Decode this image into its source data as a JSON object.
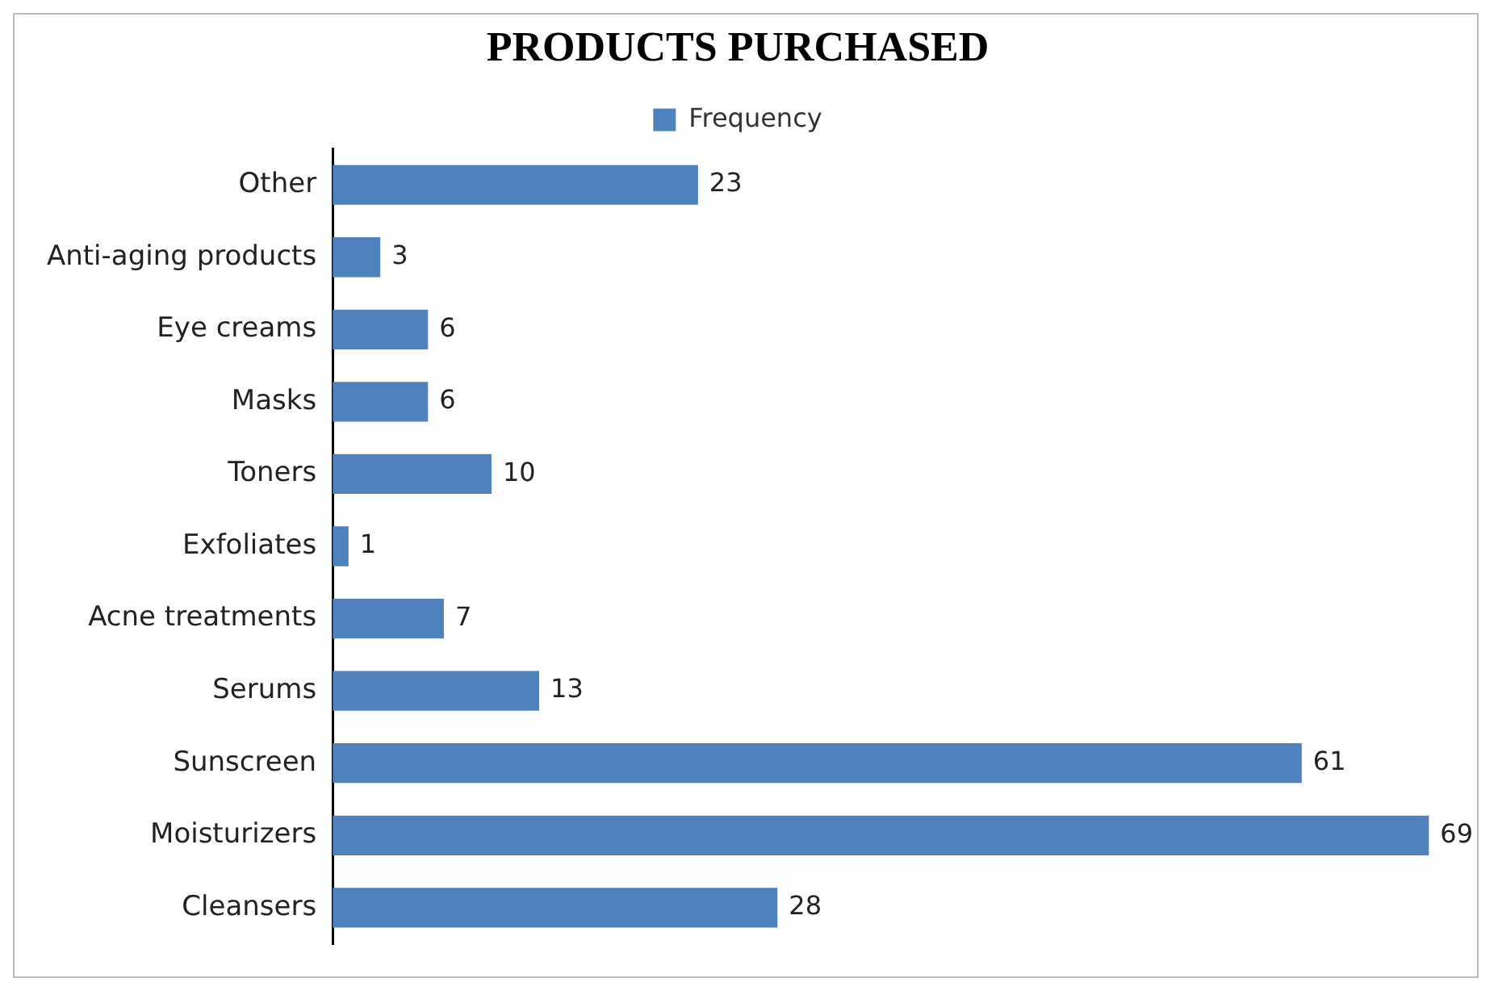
{
  "chart_data": {
    "type": "bar",
    "orientation": "horizontal",
    "title": "PRODUCTS PURCHASED",
    "categories": [
      "Other",
      "Anti-aging products",
      "Eye creams",
      "Masks",
      "Toners",
      "Exfoliates",
      "Acne treatments",
      "Serums",
      "Sunscreen",
      "Moisturizers",
      "Cleansers"
    ],
    "series": [
      {
        "name": "Frequency",
        "color": "#4f81bd",
        "values": [
          23,
          3,
          6,
          6,
          10,
          1,
          7,
          13,
          61,
          69,
          28
        ]
      }
    ],
    "tick_labels": "y",
    "data_labels": true,
    "legend": "top"
  }
}
